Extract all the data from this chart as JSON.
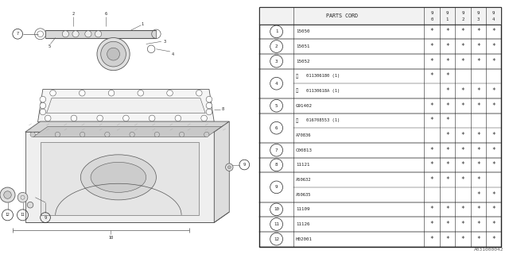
{
  "diagram_code": "A031000042",
  "bg_color": "#ffffff",
  "rows": [
    {
      "num": "1",
      "bold_b": false,
      "code": "15050",
      "marks": [
        true,
        true,
        true,
        true,
        true
      ],
      "paired": false
    },
    {
      "num": "2",
      "bold_b": false,
      "code": "15051",
      "marks": [
        true,
        true,
        true,
        true,
        true
      ],
      "paired": false
    },
    {
      "num": "3",
      "bold_b": false,
      "code": "15052",
      "marks": [
        true,
        true,
        true,
        true,
        true
      ],
      "paired": false
    },
    {
      "num": "4",
      "bold_b": true,
      "code": "011306180 (1)",
      "marks": [
        true,
        true,
        false,
        false,
        false
      ],
      "paired": true,
      "pair_first": true
    },
    {
      "num": "4",
      "bold_b": true,
      "code": "01130618A (1)",
      "marks": [
        false,
        true,
        true,
        true,
        true
      ],
      "paired": true,
      "pair_first": false
    },
    {
      "num": "5",
      "bold_b": false,
      "code": "G91402",
      "marks": [
        true,
        true,
        true,
        true,
        true
      ],
      "paired": false
    },
    {
      "num": "6",
      "bold_b": true,
      "code": "016708553 (1)",
      "marks": [
        true,
        true,
        false,
        false,
        false
      ],
      "paired": true,
      "pair_first": true
    },
    {
      "num": "6",
      "bold_b": false,
      "code": "A70836",
      "marks": [
        false,
        true,
        true,
        true,
        true
      ],
      "paired": true,
      "pair_first": false
    },
    {
      "num": "7",
      "bold_b": false,
      "code": "C00813",
      "marks": [
        true,
        true,
        true,
        true,
        true
      ],
      "paired": false
    },
    {
      "num": "8",
      "bold_b": false,
      "code": "11121",
      "marks": [
        true,
        true,
        true,
        true,
        true
      ],
      "paired": false
    },
    {
      "num": "9",
      "bold_b": false,
      "code": "A50632",
      "marks": [
        true,
        true,
        true,
        true,
        false
      ],
      "paired": true,
      "pair_first": true
    },
    {
      "num": "9",
      "bold_b": false,
      "code": "A50635",
      "marks": [
        false,
        false,
        false,
        true,
        true
      ],
      "paired": true,
      "pair_first": false
    },
    {
      "num": "10",
      "bold_b": false,
      "code": "11109",
      "marks": [
        true,
        true,
        true,
        true,
        true
      ],
      "paired": false
    },
    {
      "num": "11",
      "bold_b": false,
      "code": "11126",
      "marks": [
        true,
        true,
        true,
        true,
        true
      ],
      "paired": false
    },
    {
      "num": "12",
      "bold_b": false,
      "code": "H02001",
      "marks": [
        true,
        true,
        true,
        true,
        true
      ],
      "paired": false
    }
  ]
}
